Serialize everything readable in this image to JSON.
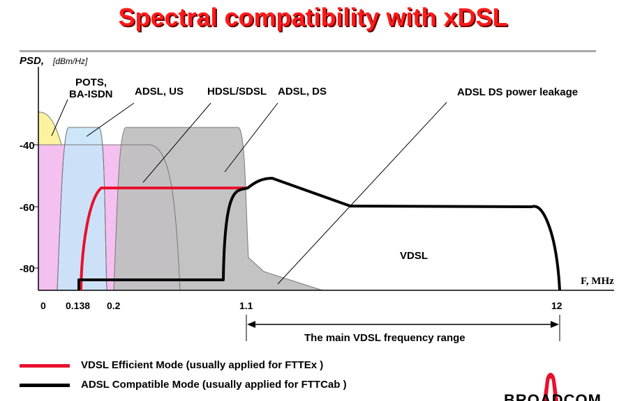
{
  "title": "Spectral compatibility with xDSL",
  "axes": {
    "y_label": "PSD,",
    "y_unit": "[dBm/Hz]",
    "y_ticks": [
      "-40",
      "-60",
      "-80"
    ],
    "x_label": "F, MHz",
    "x_ticks": [
      "0",
      "0.138",
      "0.2",
      "1.1",
      "12"
    ]
  },
  "annotations": {
    "pots_line1": "POTS,",
    "pots_line2": "BA-ISDN",
    "adsl_us": "ADSL, US",
    "hdsl_sdsl": "HDSL/SDSL",
    "adsl_ds": "ADSL, DS",
    "leakage": "ADSL DS power leakage",
    "vdsl": "VDSL",
    "range": "The main VDSL frequency range"
  },
  "legend": [
    {
      "label": "VDSL Efficient Mode (usually applied for FTTEx )",
      "color": "#e8112d"
    },
    {
      "label": "ADSL Compatible Mode (usually applied for FTTCab )",
      "color": "#000000"
    }
  ],
  "colors": {
    "pots": "#fbf3a0",
    "adsl_us": "#c8e4f8",
    "hdsl": "#f4c0f0",
    "adsl_ds": "#c8c8c8",
    "efficient": "#e8112d",
    "compatible": "#000000",
    "title": "#ff1a1a"
  },
  "logo": {
    "text": "BROADCOM"
  }
}
